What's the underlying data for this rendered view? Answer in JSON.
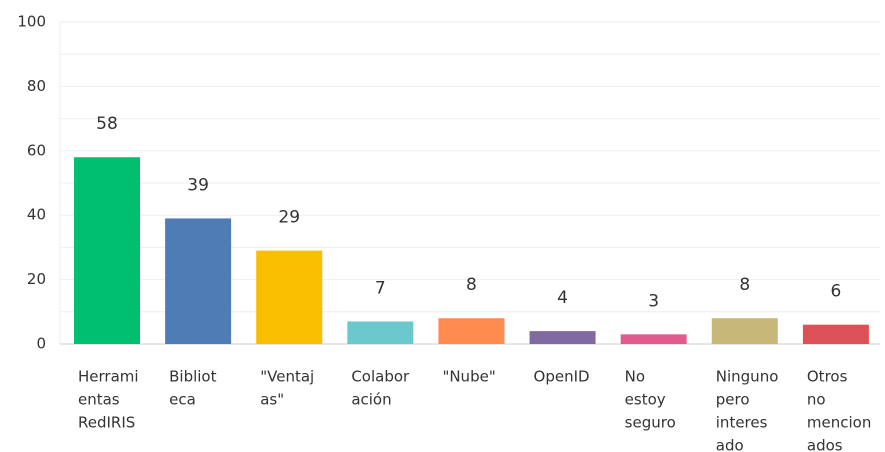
{
  "chart_data": {
    "type": "bar",
    "categories": [
      [
        "Herrami",
        "entas",
        "RedIRIS"
      ],
      [
        "Bibliot",
        "eca"
      ],
      [
        "\"Ventaj",
        "as\""
      ],
      [
        "Colabor",
        "ación"
      ],
      [
        "\"Nube\""
      ],
      [
        "OpenID"
      ],
      [
        "No",
        "estoy",
        "seguro"
      ],
      [
        "Ninguno",
        "pero",
        "interes",
        "ado"
      ],
      [
        "Otros",
        "no",
        "mencion",
        "ados"
      ]
    ],
    "values": [
      58,
      39,
      29,
      7,
      8,
      4,
      3,
      8,
      6
    ],
    "colors": [
      "#00bf6f",
      "#507cb6",
      "#f9be00",
      "#6bc8cd",
      "#ff8b4f",
      "#7f6aa1",
      "#e05c8e",
      "#c7b879",
      "#dc5158"
    ],
    "ylim": [
      0,
      100
    ],
    "yticks": [
      0,
      20,
      40,
      60,
      80,
      100
    ],
    "minor_yticks": [
      10,
      30,
      50,
      70,
      90
    ],
    "grid": true
  }
}
